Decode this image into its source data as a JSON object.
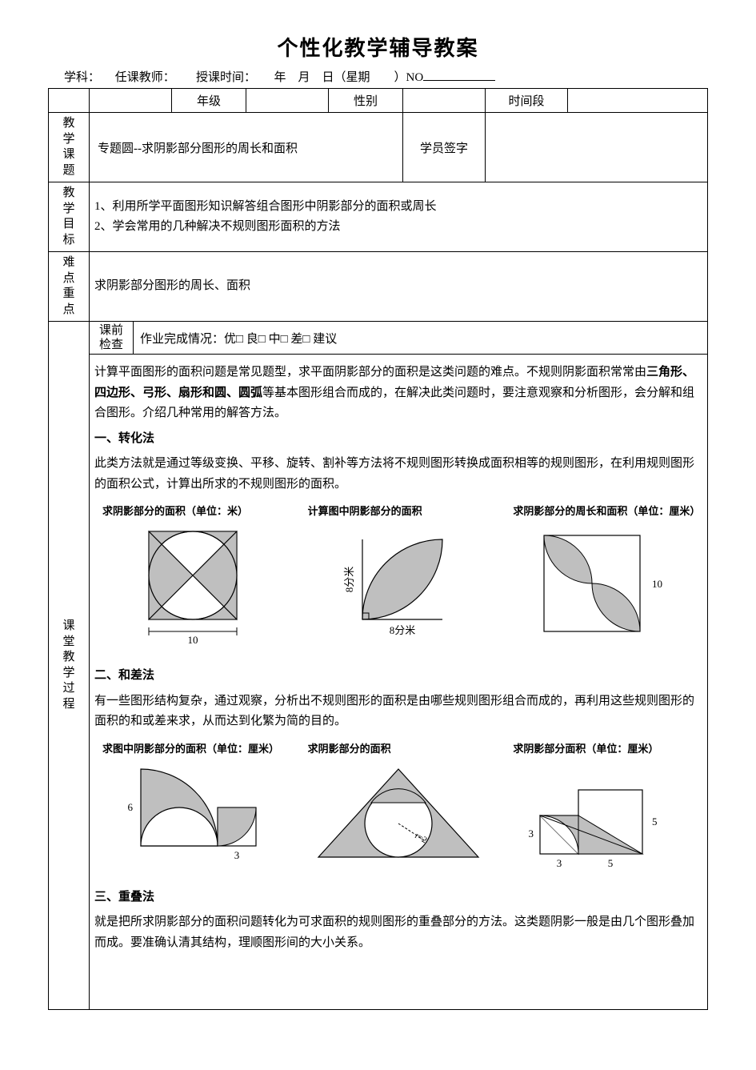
{
  "title": "个性化教学辅导教案",
  "meta": {
    "subject_label": "学科：",
    "teacher_label": "任课教师：",
    "time_label": "授课时间：",
    "date_parts": "年　月　日（星期　　）NO"
  },
  "row1": {
    "grade": "年级",
    "gender": "性别",
    "timeslot": "时间段"
  },
  "topic": {
    "label": "教学课题",
    "value": "专题圆--求阴影部分图形的周长和面积",
    "sign_label": "学员签字"
  },
  "goals": {
    "label": "教学目标",
    "l1": "1、利用所学平面图形知识解答组合图形中阴影部分的面积或周长",
    "l2": "2、学会常用的几种解决不规则图形面积的方法"
  },
  "hard": {
    "label": "难点重点",
    "value": "求阴影部分图形的周长、面积"
  },
  "precheck": {
    "label1": "课前",
    "label2": "检查",
    "text": "作业完成情况：优□  良□  中□  差□  建议"
  },
  "process_label": "课堂教学过程",
  "intro": {
    "p1a": "计算平面图形的面积问题是常见题型，求平面阴影部分的面积是这类问题的难点。不规则阴影面积常常由",
    "p1b": "三角形、四边形、弓形、扇形和圆、圆弧",
    "p1c": "等基本图形组合而成的，在解决此类问题时，要注意观察和分析图形，会分解和组合图形。介绍几种常用的解答方法。"
  },
  "s1": {
    "h": "一、转化法",
    "p": "  此类方法就是通过等级变换、平移、旋转、割补等方法将不规则图形转换成面积相等的规则图形，在利用规则图形的面积公式，计算出所求的不规则图形的面积。",
    "cap1": "求阴影部分的面积（单位：米）",
    "cap2": "计算图中阴影部分的面积",
    "cap3": "求阴影部分的周长和面积（单位：厘米）",
    "fig1_label": "10",
    "fig2_x": "8分米",
    "fig2_y": "8分米",
    "fig3_label": "10"
  },
  "s2": {
    "h": "二、和差法",
    "p": "     有一些图形结构复杂，通过观察，分析出不规则图形的面积是由哪些规则图形组合而成的，再利用这些规则图形的面积的和或差来求，从而达到化繁为简的目的。",
    "cap1": "求图中阴影部分的面积（单位：厘米）",
    "cap2": "求阴影部分的面积",
    "cap3": "求阴影部分面积（单位：厘米）",
    "fig1_a": "6",
    "fig1_b": "3",
    "fig2_r": "r=2",
    "fig3_a": "3",
    "fig3_b": "3",
    "fig3_c": "5",
    "fig3_d": "5"
  },
  "s3": {
    "h": "三、重叠法",
    "p": "     就是把所求阴影部分的面积问题转化为可求面积的规则图形的重叠部分的方法。这类题阴影一般是由几个图形叠加而成。要准确认清其结构，理顺图形间的大小关系。"
  },
  "style": {
    "fill": "#bfbfbf",
    "stroke": "#000000",
    "stroke_w": 1.2
  }
}
